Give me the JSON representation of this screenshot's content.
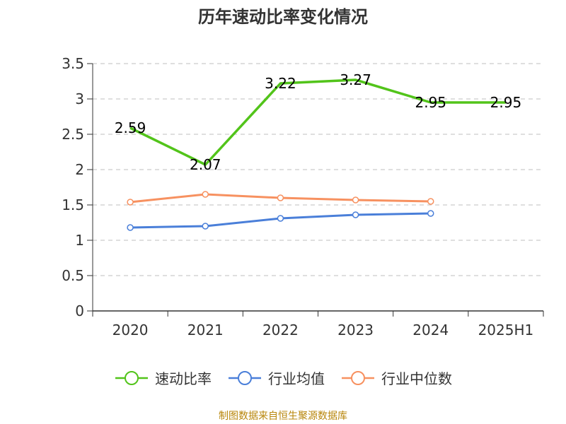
{
  "title": "历年速动比率变化情况",
  "source_note": "制图数据来自恒生聚源数据库",
  "chart_data": {
    "type": "line",
    "categories": [
      "2020",
      "2021",
      "2022",
      "2023",
      "2024",
      "2025H1"
    ],
    "ylim": [
      0,
      3.5
    ],
    "yticks": [
      "0",
      "0.5",
      "1",
      "1.5",
      "2",
      "2.5",
      "3",
      "3.5"
    ],
    "grid": true,
    "legend_position": "bottom",
    "series": [
      {
        "name": "速动比率",
        "color": "#52c41a",
        "values": [
          2.59,
          2.07,
          3.22,
          3.27,
          2.95,
          2.95
        ],
        "labels": [
          "2.59",
          "2.07",
          "3.22",
          "3.27",
          "2.95",
          "2.95"
        ],
        "show_markers": false
      },
      {
        "name": "行业均值",
        "color": "#4a7fd9",
        "values": [
          1.18,
          1.2,
          1.31,
          1.36,
          1.38,
          null
        ],
        "show_markers": true
      },
      {
        "name": "行业中位数",
        "color": "#f79160",
        "values": [
          1.54,
          1.65,
          1.6,
          1.57,
          1.55,
          null
        ],
        "show_markers": true
      }
    ]
  }
}
